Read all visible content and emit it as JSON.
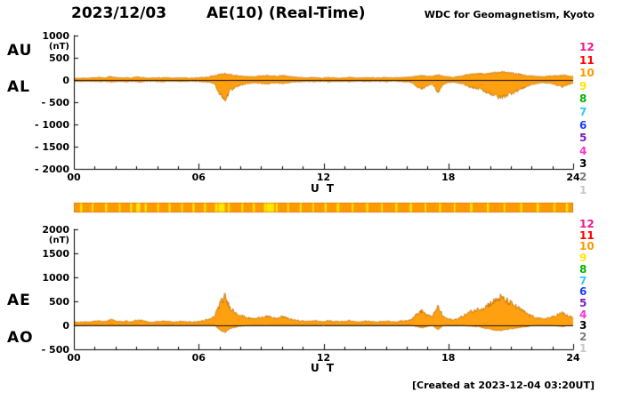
{
  "header": {
    "date": "2023/12/03",
    "title": "AE(10) (Real-Time)",
    "source": "WDC for Geomagnetism, Kyoto"
  },
  "footer": {
    "created": "[Created at 2023-12-04 03:20UT]"
  },
  "legend": {
    "station_counts": [
      12,
      11,
      10,
      9,
      8,
      7,
      6,
      5,
      4,
      3,
      2,
      1
    ],
    "colors": {
      "12": "#f01a8c",
      "11": "#ff0000",
      "10": "#ff9900",
      "9": "#ffe800",
      "8": "#00b400",
      "7": "#2fc8ff",
      "6": "#1e3cff",
      "5": "#7d1fbe",
      "4": "#ff30d2",
      "3": "#000000",
      "2": "#7d7d7d",
      "1": "#c8c8c8"
    }
  },
  "colors": {
    "background": "#ffffff",
    "axis": "#000000",
    "trace_fill": "#ffa010",
    "trace_stroke": "#c26d00"
  },
  "availability_bar": {
    "base_station_count": 10,
    "streak_station_count": 9,
    "streak_hours": [
      0.35,
      0.9,
      1.55,
      2.2,
      2.75,
      3.1,
      3.45,
      4.05,
      4.6,
      5.2,
      5.75,
      6.3,
      6.85,
      7.1,
      7.45,
      8.1,
      8.65,
      9.2,
      9.45,
      9.75,
      10.3,
      10.9,
      11.5,
      12.1,
      12.7,
      13.4,
      14.1,
      14.8,
      15.5,
      16.2,
      16.9,
      17.6,
      18.3,
      19.1,
      19.9,
      20.7,
      21.5,
      22.3,
      23.1,
      23.7
    ],
    "streak_widths_hours": [
      0.1,
      0.08,
      0.1,
      0.08,
      0.1,
      0.2,
      0.1,
      0.08,
      0.1,
      0.08,
      0.1,
      0.1,
      0.12,
      0.3,
      0.1,
      0.08,
      0.1,
      0.12,
      0.35,
      0.1,
      0.08,
      0.1,
      0.08,
      0.1,
      0.12,
      0.08,
      0.1,
      0.08,
      0.1,
      0.12,
      0.08,
      0.1,
      0.08,
      0.12,
      0.1,
      0.08,
      0.1,
      0.12,
      0.08,
      0.1
    ]
  },
  "chart_data": {
    "type": "area",
    "xlabel": "U T",
    "xlim": [
      0,
      24
    ],
    "xticks": [
      "00",
      "06",
      "12",
      "18",
      "24"
    ],
    "xtick_values": [
      0,
      6,
      12,
      18,
      24
    ],
    "grid": false,
    "x_hours": [
      0,
      0.25,
      0.5,
      0.75,
      1,
      1.25,
      1.5,
      1.75,
      2,
      2.25,
      2.5,
      2.75,
      3,
      3.25,
      3.5,
      3.75,
      4,
      4.25,
      4.5,
      4.75,
      5,
      5.25,
      5.5,
      5.75,
      6,
      6.25,
      6.5,
      6.75,
      7,
      7.25,
      7.5,
      7.75,
      8,
      8.25,
      8.5,
      8.75,
      9,
      9.25,
      9.5,
      9.75,
      10,
      10.25,
      10.5,
      10.75,
      11,
      11.25,
      11.5,
      11.75,
      12,
      12.25,
      12.5,
      12.75,
      13,
      13.25,
      13.5,
      13.75,
      14,
      14.25,
      14.5,
      14.75,
      15,
      15.25,
      15.5,
      15.75,
      16,
      16.25,
      16.5,
      16.75,
      17,
      17.25,
      17.5,
      17.75,
      18,
      18.25,
      18.5,
      18.75,
      19,
      19.25,
      19.5,
      19.75,
      20,
      20.25,
      20.5,
      20.75,
      21,
      21.25,
      21.5,
      21.75,
      22,
      22.25,
      22.5,
      22.75,
      23,
      23.25,
      23.5,
      23.75,
      24
    ],
    "panels": [
      {
        "name": "AU-AL panel",
        "labels": [
          "AU",
          "AL"
        ],
        "unit": "(nT)",
        "ylim": [
          -2000,
          1000
        ],
        "yticks": [
          "1000",
          "500",
          "0",
          "- 500",
          "- 1000",
          "- 1500",
          "- 2000"
        ],
        "ytick_values": [
          1000,
          500,
          0,
          -500,
          -1000,
          -1500,
          -2000
        ]
      },
      {
        "name": "AE-AO panel",
        "labels": [
          "AE",
          "AO"
        ],
        "unit": "(nT)",
        "ylim": [
          -500,
          2000
        ],
        "yticks": [
          "2000",
          "1500",
          "1000",
          "500",
          "0",
          "- 500"
        ],
        "ytick_values": [
          2000,
          1500,
          1000,
          500,
          0,
          -500
        ]
      }
    ],
    "series": [
      {
        "name": "AU",
        "panel": 0,
        "values": [
          40,
          35,
          45,
          40,
          50,
          60,
          45,
          80,
          55,
          45,
          50,
          40,
          70,
          55,
          45,
          40,
          50,
          45,
          55,
          40,
          45,
          50,
          40,
          45,
          50,
          60,
          70,
          100,
          130,
          150,
          120,
          100,
          90,
          80,
          70,
          80,
          90,
          100,
          90,
          80,
          100,
          90,
          70,
          60,
          55,
          50,
          60,
          50,
          45,
          55,
          50,
          45,
          50,
          60,
          50,
          45,
          50,
          55,
          45,
          50,
          55,
          45,
          50,
          55,
          60,
          70,
          90,
          100,
          80,
          90,
          110,
          80,
          70,
          60,
          80,
          100,
          120,
          130,
          140,
          130,
          150,
          160,
          180,
          170,
          160,
          140,
          120,
          100,
          90,
          80,
          70,
          80,
          90,
          100,
          110,
          90,
          80
        ]
      },
      {
        "name": "AL",
        "panel": 0,
        "values": [
          -35,
          -30,
          -25,
          -30,
          -35,
          -40,
          -30,
          -45,
          -35,
          -30,
          -40,
          -30,
          -35,
          -45,
          -30,
          -25,
          -30,
          -40,
          -30,
          -25,
          -30,
          -35,
          -30,
          -25,
          -30,
          -40,
          -50,
          -80,
          -300,
          -450,
          -250,
          -180,
          -120,
          -90,
          -70,
          -60,
          -80,
          -90,
          -70,
          -60,
          -80,
          -60,
          -50,
          -40,
          -35,
          -30,
          -40,
          -35,
          -30,
          -40,
          -30,
          -35,
          -30,
          -40,
          -30,
          -25,
          -35,
          -30,
          -25,
          -30,
          -35,
          -30,
          -25,
          -35,
          -40,
          -60,
          -150,
          -200,
          -120,
          -100,
          -280,
          -100,
          -60,
          -50,
          -70,
          -100,
          -150,
          -180,
          -200,
          -250,
          -300,
          -350,
          -400,
          -350,
          -300,
          -250,
          -200,
          -150,
          -100,
          -80,
          -60,
          -70,
          -80,
          -120,
          -150,
          -100,
          -80
        ]
      },
      {
        "name": "AE",
        "panel": 1,
        "values": [
          75,
          65,
          70,
          70,
          85,
          100,
          75,
          125,
          90,
          75,
          90,
          70,
          105,
          100,
          75,
          65,
          80,
          85,
          85,
          65,
          75,
          85,
          70,
          70,
          80,
          100,
          120,
          180,
          430,
          600,
          370,
          280,
          210,
          170,
          140,
          140,
          170,
          190,
          160,
          140,
          180,
          150,
          120,
          100,
          90,
          80,
          100,
          85,
          75,
          95,
          80,
          80,
          80,
          100,
          80,
          70,
          85,
          85,
          70,
          80,
          90,
          75,
          75,
          90,
          100,
          130,
          240,
          300,
          200,
          190,
          390,
          180,
          130,
          110,
          150,
          200,
          270,
          310,
          340,
          380,
          450,
          510,
          580,
          520,
          460,
          390,
          320,
          250,
          190,
          160,
          130,
          150,
          170,
          220,
          260,
          190,
          160
        ]
      },
      {
        "name": "AO",
        "panel": 1,
        "values": [
          3,
          3,
          10,
          5,
          8,
          10,
          8,
          18,
          10,
          8,
          5,
          5,
          18,
          5,
          8,
          8,
          10,
          3,
          13,
          8,
          8,
          8,
          5,
          10,
          10,
          10,
          10,
          10,
          -85,
          -150,
          -65,
          -40,
          -15,
          -5,
          0,
          10,
          5,
          5,
          10,
          10,
          10,
          15,
          10,
          10,
          10,
          10,
          10,
          8,
          8,
          8,
          10,
          5,
          10,
          10,
          10,
          10,
          8,
          13,
          10,
          10,
          10,
          8,
          13,
          10,
          10,
          5,
          -30,
          -50,
          -20,
          -5,
          -85,
          -10,
          5,
          5,
          5,
          0,
          -15,
          -25,
          -30,
          -60,
          -75,
          -95,
          -110,
          -90,
          -70,
          -55,
          -40,
          -25,
          -5,
          0,
          5,
          5,
          5,
          -10,
          -20,
          -5,
          0
        ]
      }
    ]
  }
}
